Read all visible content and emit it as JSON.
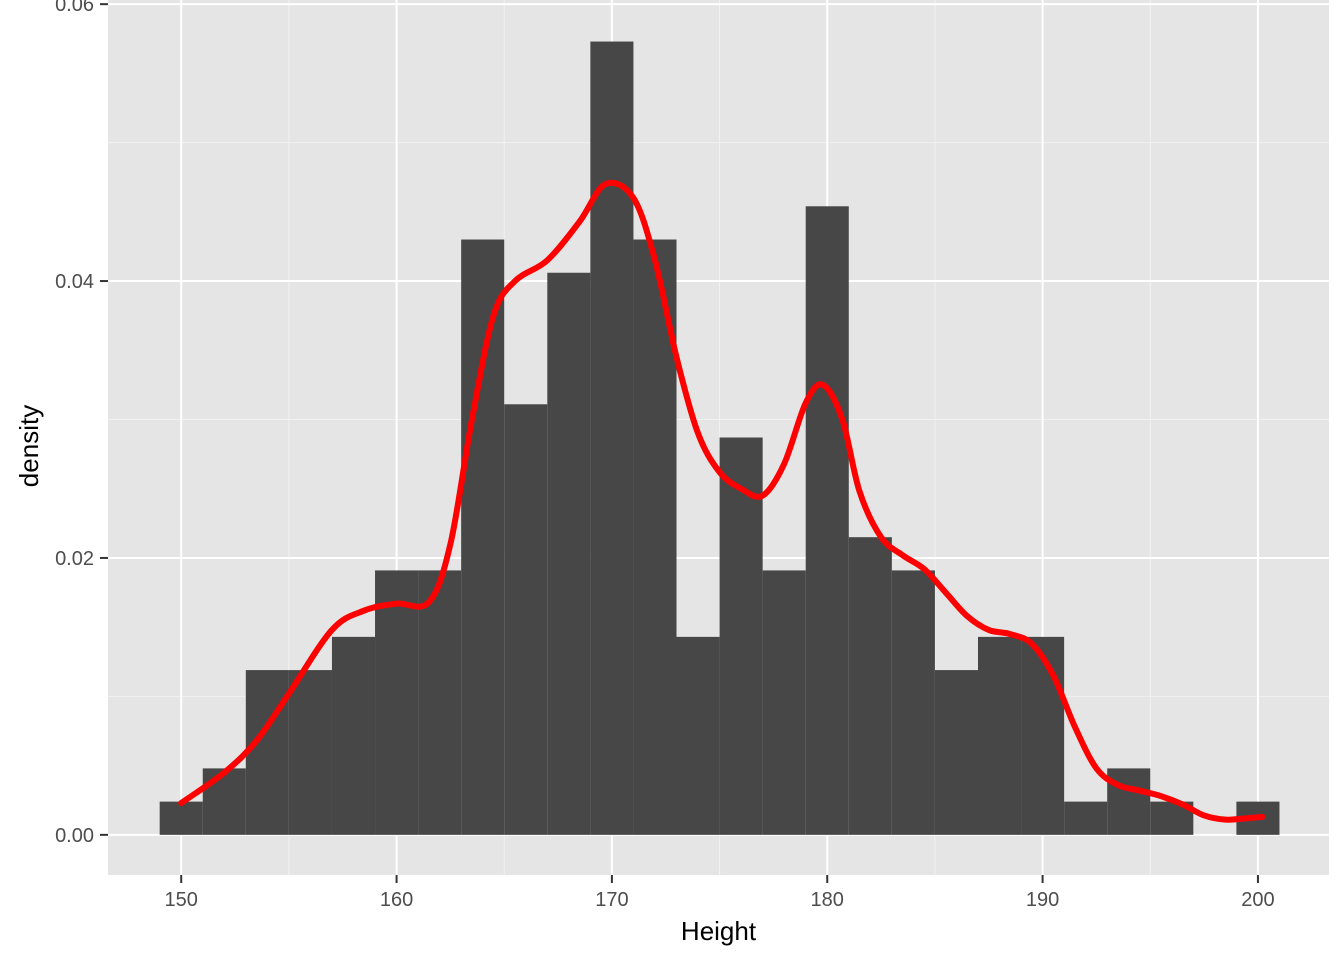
{
  "chart_data": {
    "type": "bar",
    "subtype": "histogram-with-density",
    "xlabel": "Height",
    "ylabel": "density",
    "xlim": [
      146.6,
      203.3
    ],
    "ylim": [
      -0.0029,
      0.0603
    ],
    "x_ticks": [
      150,
      160,
      170,
      180,
      190,
      200
    ],
    "x_tick_labels": [
      "150",
      "160",
      "170",
      "180",
      "190",
      "200"
    ],
    "y_ticks": [
      0.0,
      0.02,
      0.04,
      0.06
    ],
    "y_tick_labels": [
      "0.00",
      "0.02",
      "0.04",
      "0.06"
    ],
    "grid": true,
    "background": "#e5e5e5",
    "bar_color": "#474747",
    "bin_width": 2,
    "bins": [
      {
        "x0": 149,
        "x1": 151,
        "density": 0.0024
      },
      {
        "x0": 151,
        "x1": 153,
        "density": 0.0048
      },
      {
        "x0": 153,
        "x1": 155,
        "density": 0.0119
      },
      {
        "x0": 155,
        "x1": 157,
        "density": 0.0119
      },
      {
        "x0": 157,
        "x1": 159,
        "density": 0.0143
      },
      {
        "x0": 159,
        "x1": 161,
        "density": 0.0191
      },
      {
        "x0": 161,
        "x1": 163,
        "density": 0.0191
      },
      {
        "x0": 163,
        "x1": 165,
        "density": 0.043
      },
      {
        "x0": 165,
        "x1": 167,
        "density": 0.0311
      },
      {
        "x0": 167,
        "x1": 169,
        "density": 0.0406
      },
      {
        "x0": 169,
        "x1": 171,
        "density": 0.0573
      },
      {
        "x0": 171,
        "x1": 173,
        "density": 0.043
      },
      {
        "x0": 173,
        "x1": 175,
        "density": 0.0143
      },
      {
        "x0": 175,
        "x1": 177,
        "density": 0.0287
      },
      {
        "x0": 177,
        "x1": 179,
        "density": 0.0191
      },
      {
        "x0": 179,
        "x1": 181,
        "density": 0.0454
      },
      {
        "x0": 181,
        "x1": 183,
        "density": 0.0215
      },
      {
        "x0": 183,
        "x1": 185,
        "density": 0.0191
      },
      {
        "x0": 185,
        "x1": 187,
        "density": 0.0119
      },
      {
        "x0": 187,
        "x1": 189,
        "density": 0.0143
      },
      {
        "x0": 189,
        "x1": 191,
        "density": 0.0143
      },
      {
        "x0": 191,
        "x1": 193,
        "density": 0.0024
      },
      {
        "x0": 193,
        "x1": 195,
        "density": 0.0048
      },
      {
        "x0": 195,
        "x1": 197,
        "density": 0.0024
      },
      {
        "x0": 197,
        "x1": 199,
        "density": 0.0
      },
      {
        "x0": 199,
        "x1": 201,
        "density": 0.0024
      }
    ],
    "density_curve": {
      "color": "#ff0000",
      "x": [
        150,
        152,
        153.5,
        155,
        157,
        158.5,
        160,
        161.5,
        162.5,
        163.5,
        164.5,
        165.5,
        167,
        168.5,
        169.7,
        171,
        172,
        173,
        174,
        175,
        176,
        177,
        178,
        179,
        179.8,
        180.7,
        181.5,
        182.5,
        183.5,
        184.5,
        185.5,
        186.5,
        187.5,
        188.5,
        189.5,
        190.5,
        191.5,
        192.5,
        193.5,
        194.5,
        195.5,
        196.5,
        197.5,
        198.5,
        199.5,
        200.2
      ],
      "y": [
        0.0023,
        0.0045,
        0.0068,
        0.0102,
        0.0148,
        0.0162,
        0.0167,
        0.0168,
        0.021,
        0.03,
        0.0375,
        0.04,
        0.0415,
        0.0443,
        0.047,
        0.046,
        0.0415,
        0.0345,
        0.029,
        0.0262,
        0.025,
        0.0245,
        0.0268,
        0.0312,
        0.0325,
        0.03,
        0.0248,
        0.0215,
        0.0202,
        0.0192,
        0.0175,
        0.0158,
        0.0148,
        0.0145,
        0.0138,
        0.0115,
        0.0078,
        0.0048,
        0.0036,
        0.0032,
        0.0028,
        0.0022,
        0.0014,
        0.0011,
        0.0012,
        0.0013
      ]
    }
  }
}
